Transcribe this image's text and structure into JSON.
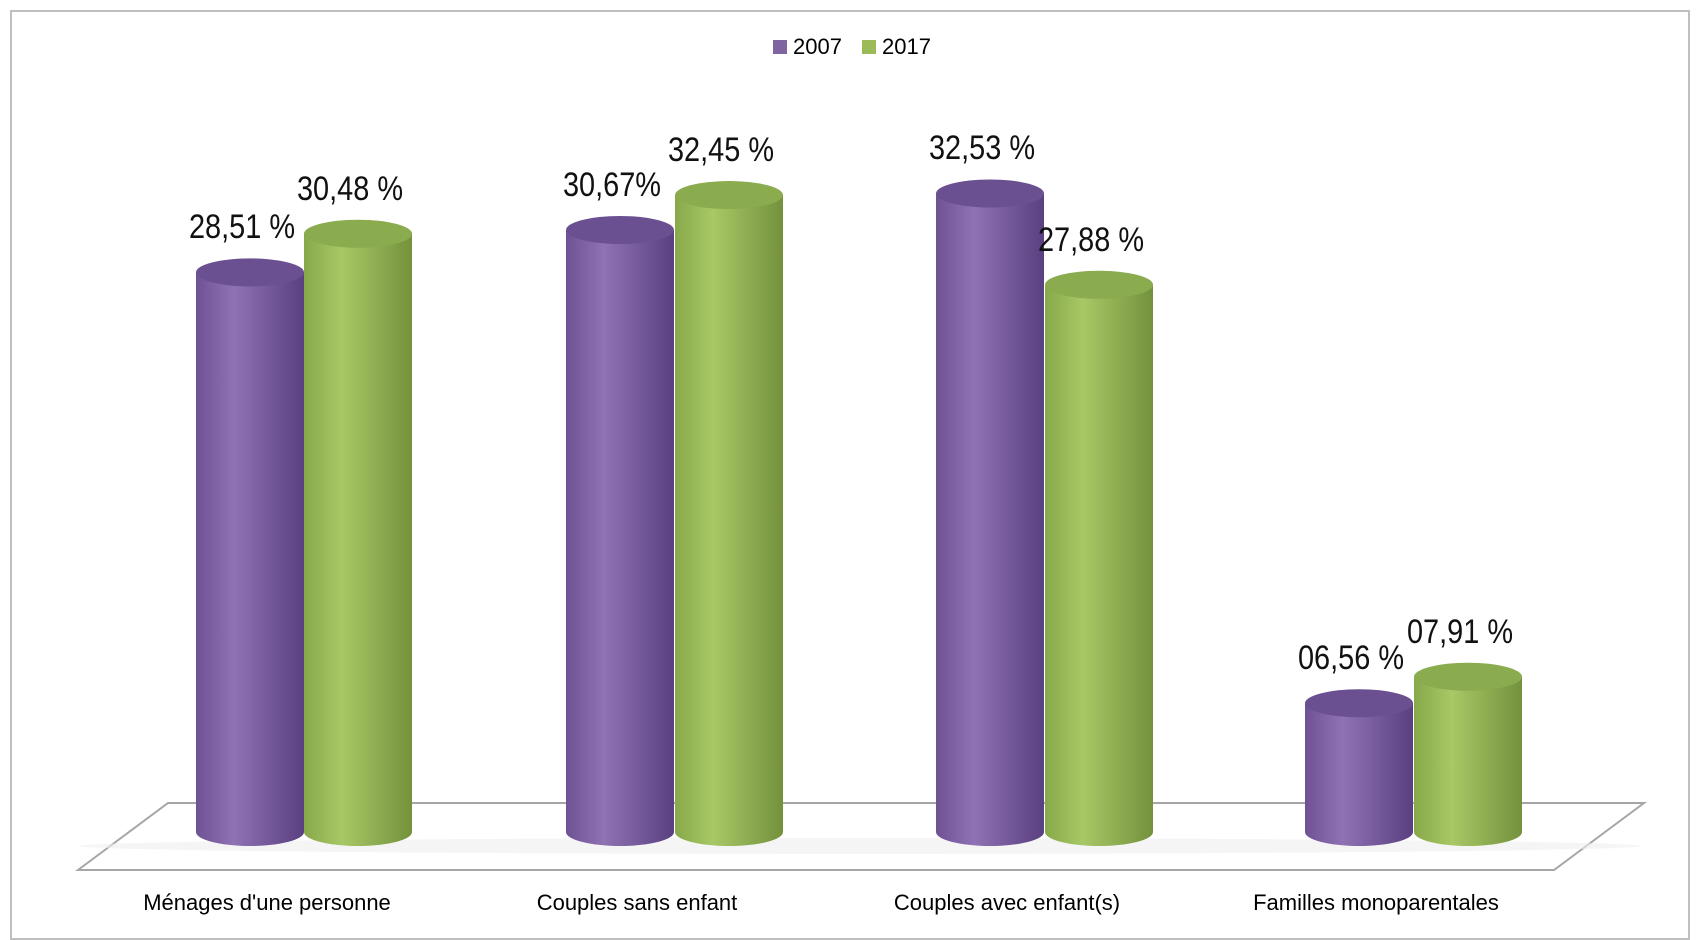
{
  "chart_data": {
    "type": "bar",
    "categories": [
      "Ménages d'une personne",
      "Couples sans enfant",
      "Couples avec enfant(s)",
      "Familles monoparentales"
    ],
    "series": [
      {
        "name": "2007",
        "values": [
          28.51,
          30.67,
          32.53,
          6.56
        ],
        "labels": [
          "28,51 %",
          "30,67%",
          "32,53 %",
          "06,56 %"
        ],
        "color": "#8064a2"
      },
      {
        "name": "2017",
        "values": [
          30.48,
          32.45,
          27.88,
          7.91
        ],
        "labels": [
          "30,48 %",
          "32,45 %",
          "27,88 %",
          "07,91 %"
        ],
        "color": "#9bbb59"
      }
    ],
    "ylim": [
      0,
      35
    ],
    "grid": false,
    "legend": "top-center",
    "style": "3d-cylinder"
  }
}
